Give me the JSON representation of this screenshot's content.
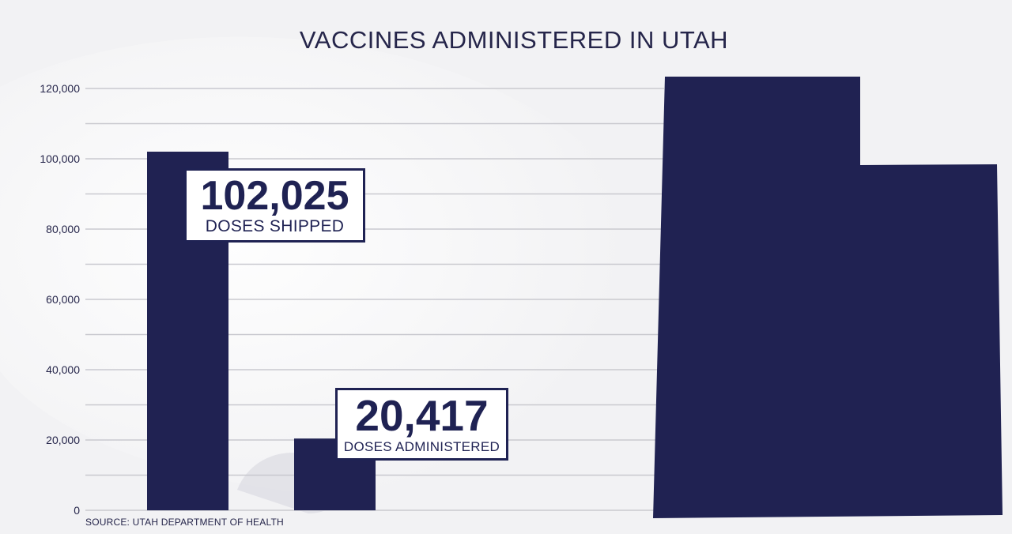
{
  "title": "VACCINES ADMINISTERED IN UTAH",
  "source": "SOURCE: UTAH DEPARTMENT OF HEALTH",
  "colors": {
    "bar": "#202252",
    "grid": "#c9c9cf",
    "text": "#25254a",
    "background": "#f2f2f4"
  },
  "callouts": {
    "shipped": {
      "value": "102,025",
      "label": "DOSES SHIPPED"
    },
    "administered": {
      "value": "20,417",
      "label": "DOSES ADMINISTERED"
    }
  },
  "chart_data": {
    "type": "bar",
    "categories": [
      "DOSES SHIPPED",
      "DOSES ADMINISTERED"
    ],
    "values": [
      102025,
      20417
    ],
    "title": "VACCINES ADMINISTERED IN UTAH",
    "xlabel": "",
    "ylabel": "",
    "ylim": [
      0,
      120000
    ],
    "yticks": [
      0,
      20000,
      40000,
      60000,
      80000,
      100000,
      120000
    ],
    "ytick_labels": [
      "0",
      "20,000",
      "40,000",
      "60,000",
      "80,000",
      "100,000",
      "120,000"
    ],
    "grid": true,
    "minor_grid_step": 10000,
    "legend": "none",
    "decoration": "utah-state-silhouette"
  }
}
